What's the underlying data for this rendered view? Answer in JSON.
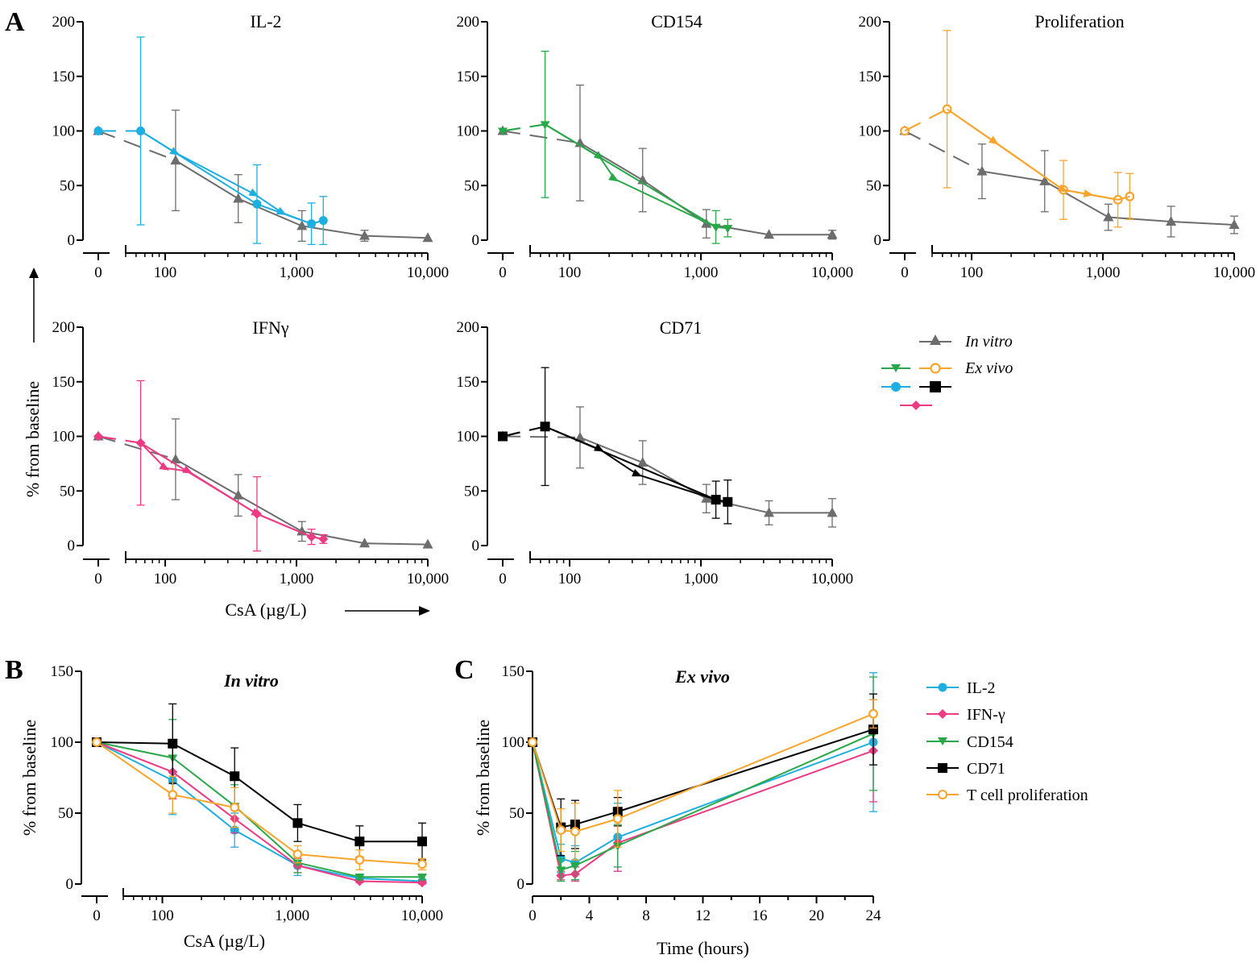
{
  "panel_labels": {
    "a": "A",
    "b": "B",
    "c": "C"
  },
  "axis_text": {
    "y_label": "% from baseline",
    "x_label_conc": "CsA (µg/L)",
    "x_label_time": "Time (hours)"
  },
  "legend_a": {
    "in_vitro": "In vitro",
    "ex_vivo": "Ex vivo"
  },
  "legend_c": [
    "IL-2",
    "IFN-γ",
    "CD154",
    "CD71",
    "T cell proliferation"
  ],
  "colors": {
    "IL-2": "#1eaee0",
    "IFNg": "#ec3b84",
    "CD154": "#29a84a",
    "CD71": "#000000",
    "Prolif": "#f9a52d",
    "in_vitro": "#6d6d6e"
  },
  "chart_data": [
    {
      "id": "A1",
      "type": "line",
      "title": "IL-2",
      "xscale": "log",
      "ylim": [
        0,
        200
      ],
      "yticks": [
        0,
        50,
        100,
        150,
        200
      ],
      "xticks": [
        {
          "v": 0,
          "label": "0"
        },
        {
          "v": 100,
          "label": "100"
        },
        {
          "v": 1000,
          "label": "1,000"
        },
        {
          "v": 10000,
          "label": "10,000"
        }
      ],
      "series": [
        {
          "name": "In vitro",
          "color": "#6d6d6e",
          "marker": "triangle",
          "x": [
            0,
            120,
            360,
            1100,
            3300,
            10000
          ],
          "y": [
            100,
            73,
            38,
            13,
            4,
            2
          ],
          "err": [
            0,
            46,
            22,
            14,
            5,
            0
          ]
        },
        {
          "name": "Ex vivo",
          "color": "#1eaee0",
          "marker": "circle",
          "x": [
            0,
            65,
            500,
            1300,
            1600
          ],
          "y": [
            100,
            100,
            33,
            15,
            18
          ],
          "err": [
            0,
            86,
            36,
            19,
            22
          ]
        },
        {
          "name": "Ex vivo",
          "color": "#1eaee0",
          "marker": "arrow",
          "x": [
            0,
            65,
            120,
            480,
            780,
            1300,
            1600
          ],
          "y": [
            100,
            100,
            80,
            42,
            25,
            15,
            18
          ]
        }
      ]
    },
    {
      "id": "A2",
      "type": "line",
      "title": "CD154",
      "xscale": "log",
      "ylim": [
        0,
        200
      ],
      "yticks": [
        0,
        50,
        100,
        150,
        200
      ],
      "xticks": [
        {
          "v": 0,
          "label": "0"
        },
        {
          "v": 100,
          "label": "100"
        },
        {
          "v": 1000,
          "label": "1,000"
        },
        {
          "v": 10000,
          "label": "10,000"
        }
      ],
      "series": [
        {
          "name": "In vitro",
          "color": "#6d6d6e",
          "marker": "triangle",
          "x": [
            0,
            120,
            360,
            1100,
            3300,
            10000
          ],
          "y": [
            100,
            89,
            55,
            15,
            5,
            5
          ],
          "err": [
            0,
            53,
            29,
            13,
            0,
            4
          ]
        },
        {
          "name": "Ex vivo",
          "color": "#29a84a",
          "marker": "tri-down",
          "x": [
            0,
            65,
            1300,
            1600
          ],
          "y": [
            100,
            106,
            12,
            11
          ],
          "err": [
            0,
            67,
            15,
            8
          ]
        },
        {
          "name": "Ex vivo",
          "color": "#29a84a",
          "marker": "arrow",
          "x": [
            0,
            65,
            170,
            220,
            1300,
            1600
          ],
          "y": [
            100,
            106,
            76,
            56,
            12,
            11
          ]
        }
      ]
    },
    {
      "id": "A3",
      "type": "line",
      "title": "Proliferation",
      "xscale": "log",
      "ylim": [
        0,
        200
      ],
      "yticks": [
        0,
        50,
        100,
        150,
        200
      ],
      "xticks": [
        {
          "v": 0,
          "label": "0"
        },
        {
          "v": 100,
          "label": "100"
        },
        {
          "v": 1000,
          "label": "1,000"
        },
        {
          "v": 10000,
          "label": "10,000"
        }
      ],
      "series": [
        {
          "name": "In vitro",
          "color": "#6d6d6e",
          "marker": "triangle",
          "x": [
            0,
            120,
            360,
            1100,
            3300,
            10000
          ],
          "y": [
            100,
            63,
            54,
            21,
            17,
            14
          ],
          "err": [
            0,
            25,
            28,
            12,
            14,
            8
          ]
        },
        {
          "name": "Ex vivo",
          "color": "#f9a52d",
          "marker": "open-circle",
          "x": [
            0,
            65,
            500,
            1300,
            1600
          ],
          "y": [
            100,
            120,
            46,
            37,
            40
          ],
          "err": [
            0,
            72,
            27,
            25,
            21
          ]
        },
        {
          "name": "Ex vivo",
          "color": "#f9a52d",
          "marker": "arrow",
          "x": [
            0,
            65,
            150,
            500,
            780,
            1300,
            1600
          ],
          "y": [
            100,
            120,
            90,
            46,
            42,
            37,
            40
          ]
        }
      ]
    },
    {
      "id": "A4",
      "type": "line",
      "title": "IFNγ",
      "xscale": "log",
      "ylim": [
        0,
        200
      ],
      "yticks": [
        0,
        50,
        100,
        150,
        200
      ],
      "xticks": [
        {
          "v": 0,
          "label": "0"
        },
        {
          "v": 100,
          "label": "100"
        },
        {
          "v": 1000,
          "label": "1,000"
        },
        {
          "v": 10000,
          "label": "10,000"
        }
      ],
      "series": [
        {
          "name": "In vitro",
          "color": "#6d6d6e",
          "marker": "triangle",
          "x": [
            0,
            120,
            360,
            1100,
            3300,
            10000
          ],
          "y": [
            100,
            79,
            46,
            13,
            2,
            1
          ],
          "err": [
            0,
            37,
            19,
            9,
            0,
            0
          ]
        },
        {
          "name": "Ex vivo",
          "color": "#ec3b84",
          "marker": "diamond",
          "x": [
            0,
            65,
            500,
            1300,
            1600
          ],
          "y": [
            100,
            94,
            29,
            8,
            6
          ],
          "err": [
            0,
            57,
            34,
            7,
            4
          ]
        },
        {
          "name": "Ex vivo",
          "color": "#ec3b84",
          "marker": "arrow",
          "x": [
            0,
            65,
            100,
            150,
            500,
            1300,
            1600
          ],
          "y": [
            100,
            94,
            71,
            68,
            29,
            8,
            6
          ]
        }
      ]
    },
    {
      "id": "A5",
      "type": "line",
      "title": "CD71",
      "xscale": "log",
      "ylim": [
        0,
        200
      ],
      "yticks": [
        0,
        50,
        100,
        150,
        200
      ],
      "xticks": [
        {
          "v": 0,
          "label": "0"
        },
        {
          "v": 100,
          "label": "100"
        },
        {
          "v": 1000,
          "label": "1,000"
        },
        {
          "v": 10000,
          "label": "10,000"
        }
      ],
      "series": [
        {
          "name": "In vitro",
          "color": "#6d6d6e",
          "marker": "triangle",
          "x": [
            0,
            120,
            360,
            1100,
            3300,
            10000
          ],
          "y": [
            100,
            99,
            76,
            43,
            30,
            30
          ],
          "err": [
            0,
            28,
            20,
            13,
            11,
            13
          ]
        },
        {
          "name": "Ex vivo",
          "color": "#000000",
          "marker": "square",
          "x": [
            0,
            65,
            1300,
            1600
          ],
          "y": [
            100,
            109,
            42,
            40
          ],
          "err": [
            0,
            54,
            17,
            20
          ]
        },
        {
          "name": "Ex vivo",
          "color": "#000000",
          "marker": "arrow",
          "x": [
            0,
            65,
            170,
            330,
            1300,
            1600
          ],
          "y": [
            100,
            109,
            88,
            65,
            42,
            40
          ]
        }
      ]
    },
    {
      "id": "B",
      "type": "line",
      "title": "In vitro",
      "xscale": "log",
      "ylim": [
        0,
        150
      ],
      "xlabel": "CsA (µg/L)",
      "ylabel": "% from baseline",
      "yticks": [
        0,
        50,
        100,
        150
      ],
      "xticks": [
        {
          "v": 0,
          "label": "0"
        },
        {
          "v": 100,
          "label": "100"
        },
        {
          "v": 1000,
          "label": "1,000"
        },
        {
          "v": 10000,
          "label": "10,000"
        }
      ],
      "series": [
        {
          "name": "IL-2",
          "color": "#1eaee0",
          "marker": "circle",
          "x": [
            0,
            120,
            360,
            1100,
            3300,
            10000
          ],
          "y": [
            100,
            73,
            38,
            13,
            4,
            2
          ],
          "err": [
            0,
            24,
            12,
            7,
            2,
            1
          ]
        },
        {
          "name": "IFN-γ",
          "color": "#ec3b84",
          "marker": "diamond",
          "x": [
            0,
            120,
            360,
            1100,
            3300,
            10000
          ],
          "y": [
            100,
            79,
            46,
            13,
            2,
            1
          ],
          "err": [
            0,
            19,
            10,
            5,
            1,
            1
          ]
        },
        {
          "name": "CD154",
          "color": "#29a84a",
          "marker": "tri-down",
          "x": [
            0,
            120,
            360,
            1100,
            3300,
            10000
          ],
          "y": [
            100,
            89,
            55,
            15,
            5,
            5
          ],
          "err": [
            0,
            27,
            15,
            7,
            2,
            2
          ]
        },
        {
          "name": "CD71",
          "color": "#000000",
          "marker": "square",
          "x": [
            0,
            120,
            360,
            1100,
            3300,
            10000
          ],
          "y": [
            100,
            99,
            76,
            43,
            30,
            30
          ],
          "err": [
            0,
            28,
            20,
            13,
            11,
            13
          ]
        },
        {
          "name": "T cell proliferation",
          "color": "#f9a52d",
          "marker": "open-circle",
          "x": [
            0,
            120,
            360,
            1100,
            3300,
            10000
          ],
          "y": [
            100,
            63,
            54,
            21,
            17,
            14
          ],
          "err": [
            0,
            13,
            14,
            6,
            7,
            4
          ]
        }
      ]
    },
    {
      "id": "C",
      "type": "line",
      "title": "Ex vivo",
      "xscale": "linear",
      "xlim": [
        0,
        24
      ],
      "ylim": [
        0,
        150
      ],
      "xlabel": "Time (hours)",
      "ylabel": "% from baseline",
      "yticks": [
        0,
        50,
        100,
        150
      ],
      "xticks": [
        {
          "v": 0,
          "label": "0"
        },
        {
          "v": 4,
          "label": "4"
        },
        {
          "v": 8,
          "label": "8"
        },
        {
          "v": 12,
          "label": "12"
        },
        {
          "v": 16,
          "label": "16"
        },
        {
          "v": 20,
          "label": "20"
        },
        {
          "v": 24,
          "label": "24"
        }
      ],
      "series": [
        {
          "name": "IL-2",
          "color": "#1eaee0",
          "marker": "circle",
          "x": [
            0,
            2,
            3,
            6,
            24
          ],
          "y": [
            100,
            18,
            15,
            33,
            100
          ],
          "err": [
            0,
            10,
            12,
            24,
            49
          ]
        },
        {
          "name": "IFN-γ",
          "color": "#ec3b84",
          "marker": "diamond",
          "x": [
            0,
            2,
            3,
            6,
            24
          ],
          "y": [
            100,
            6,
            7,
            29,
            94
          ],
          "err": [
            0,
            3,
            5,
            20,
            36
          ]
        },
        {
          "name": "CD154",
          "color": "#29a84a",
          "marker": "tri-down",
          "x": [
            0,
            2,
            3,
            6,
            24
          ],
          "y": [
            100,
            10,
            13,
            27,
            106
          ],
          "err": [
            0,
            8,
            10,
            15,
            40
          ]
        },
        {
          "name": "CD71",
          "color": "#000000",
          "marker": "square",
          "x": [
            0,
            2,
            3,
            6,
            24
          ],
          "y": [
            100,
            40,
            42,
            51,
            109
          ],
          "err": [
            0,
            20,
            17,
            10,
            25
          ]
        },
        {
          "name": "T cell proliferation",
          "color": "#f9a52d",
          "marker": "open-circle",
          "x": [
            0,
            2,
            3,
            6,
            24
          ],
          "y": [
            100,
            38,
            37,
            46,
            120
          ],
          "err": [
            0,
            15,
            20,
            20,
            10
          ]
        }
      ]
    }
  ]
}
